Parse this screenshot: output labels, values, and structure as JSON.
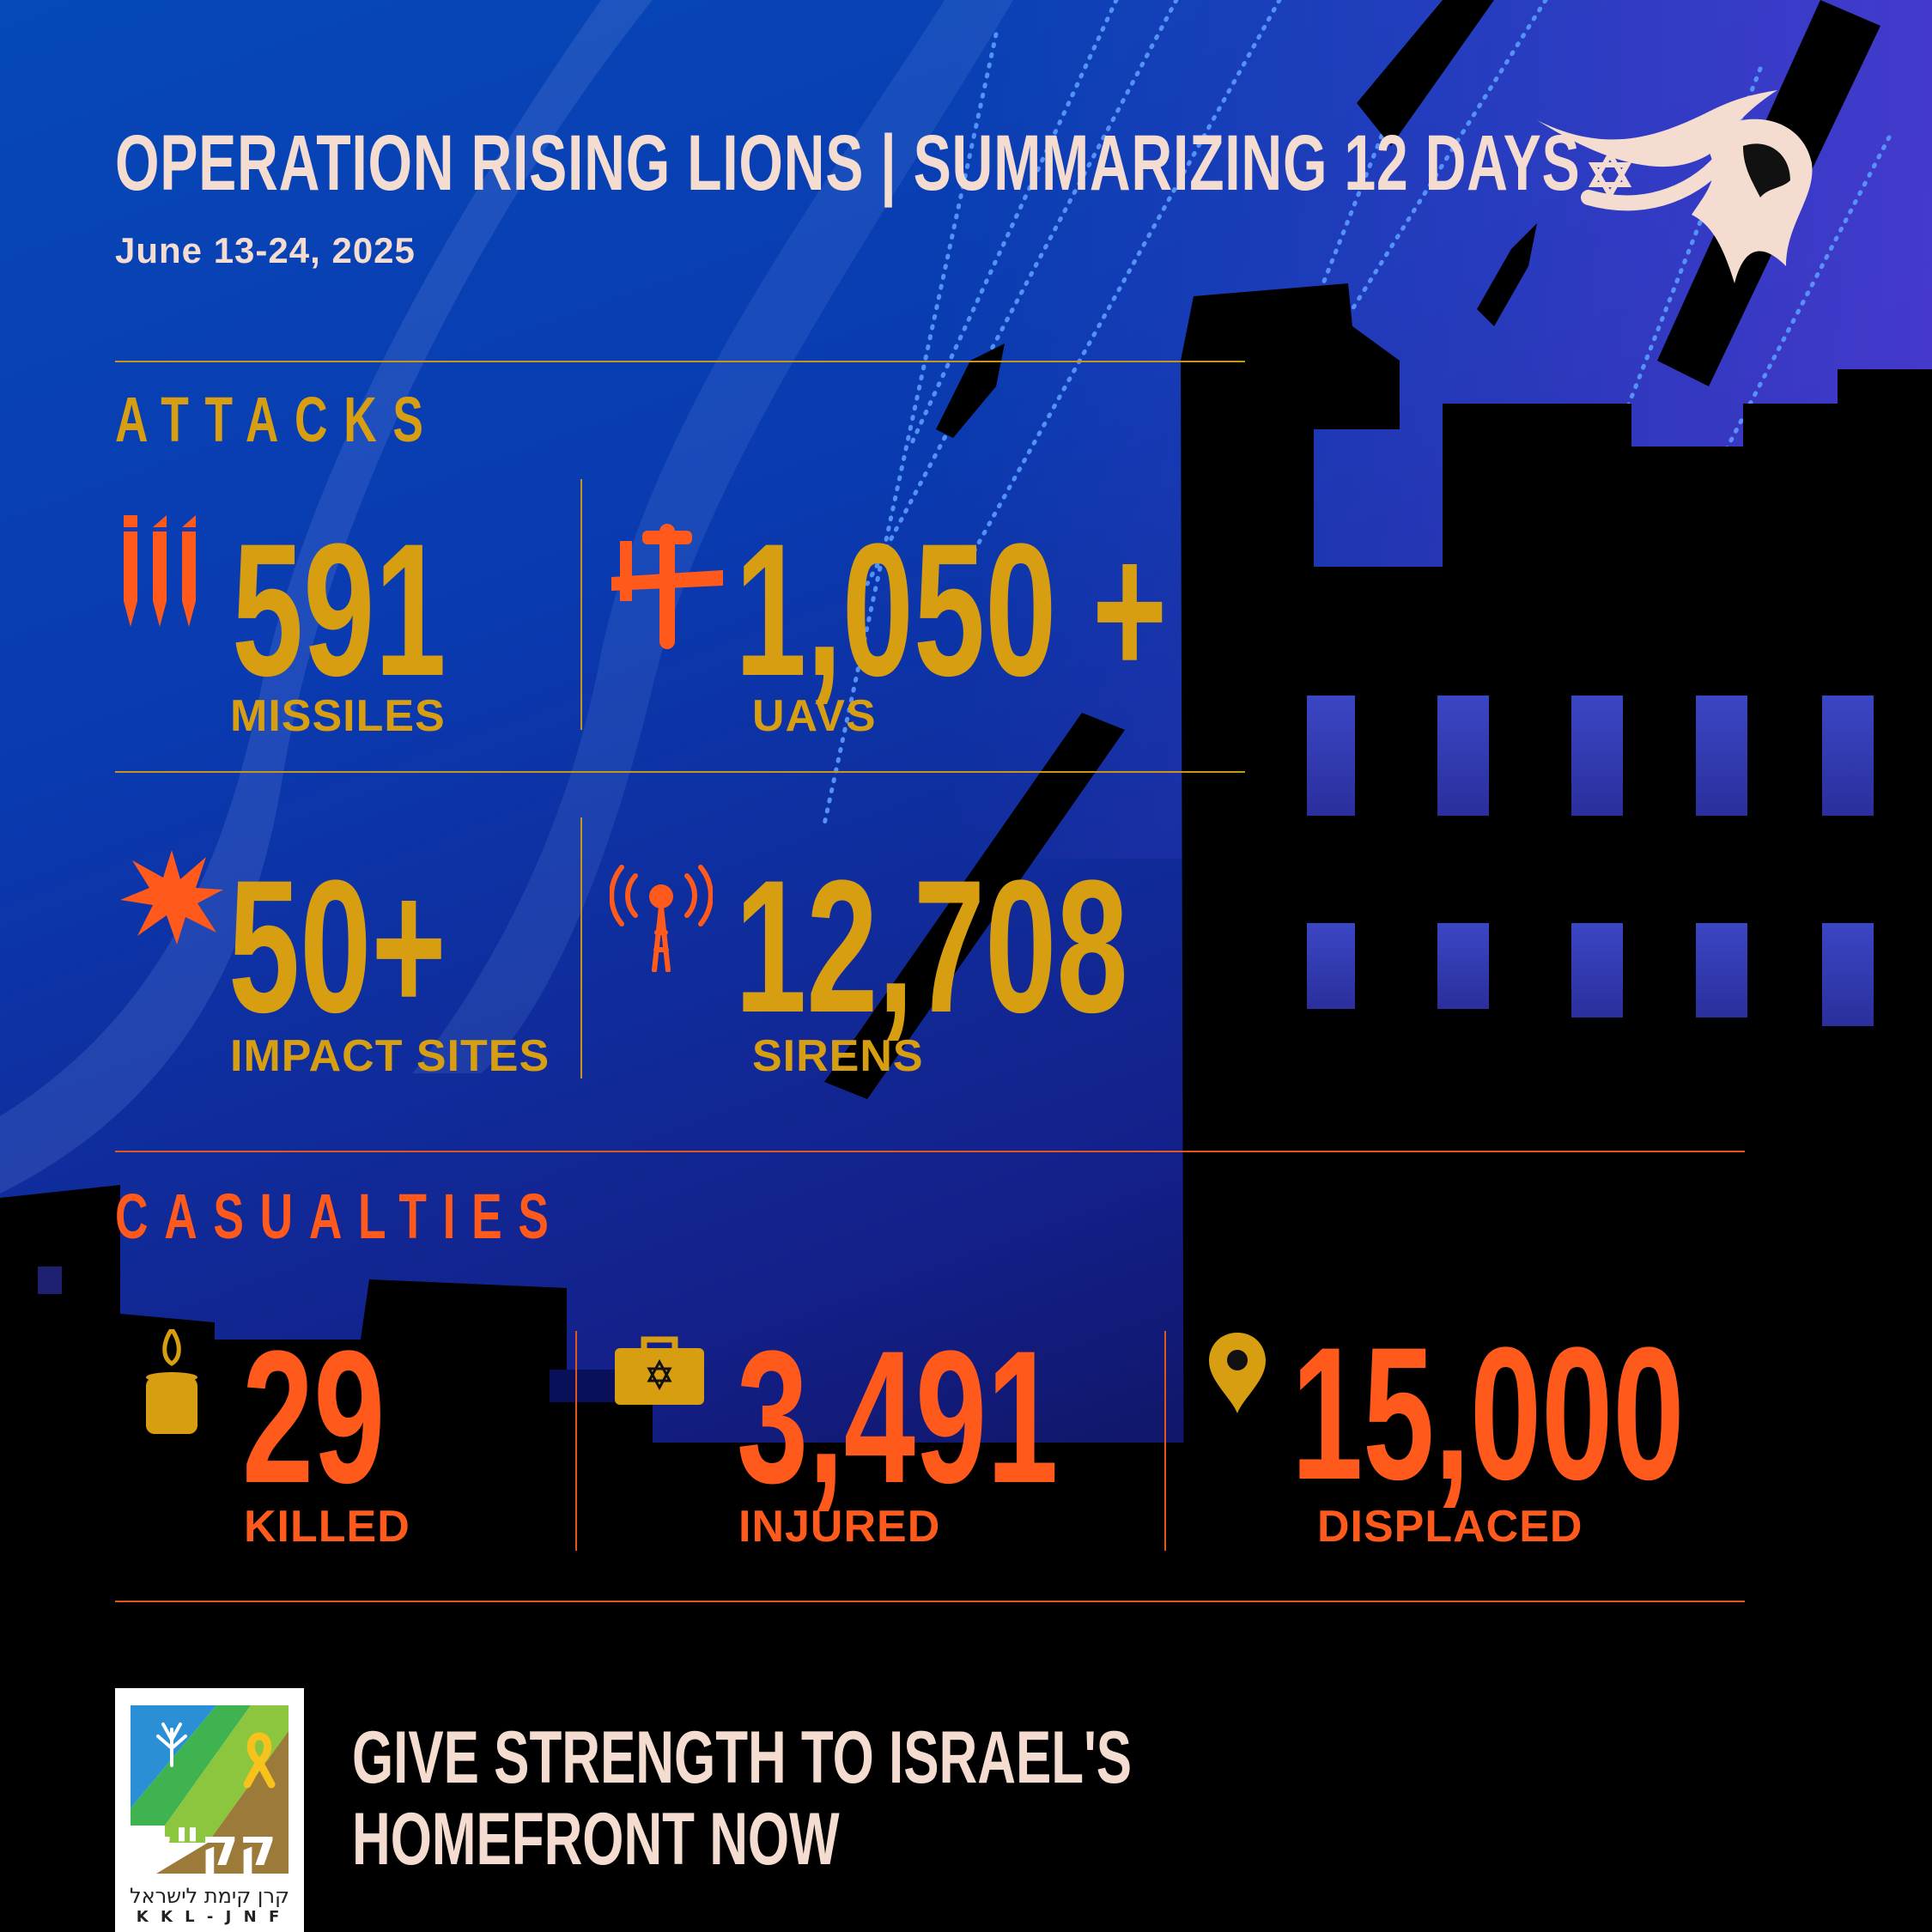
{
  "header": {
    "title": "OPERATION RISING LIONS  |  SUMMARIZING 12 DAYS",
    "date": "June 13-24, 2025"
  },
  "attacks": {
    "section_title": "ATTACKS",
    "stats": [
      {
        "value": "591",
        "label": "MISSILES",
        "icon": "missiles-icon"
      },
      {
        "value": "1,050 +",
        "label": "UAVS",
        "icon": "drone-icon"
      },
      {
        "value": "50+",
        "label": "IMPACT SITES",
        "icon": "explosion-icon"
      },
      {
        "value": "12,708",
        "label": "SIRENS",
        "icon": "siren-tower-icon"
      }
    ]
  },
  "casualties": {
    "section_title": "CASUALTIES",
    "stats": [
      {
        "value": "29",
        "label": "KILLED",
        "icon": "memorial-candle-icon"
      },
      {
        "value": "3,491",
        "label": "INJURED",
        "icon": "medical-kit-icon"
      },
      {
        "value": "15,000",
        "label": "DISPLACED",
        "icon": "location-pin-icon"
      }
    ]
  },
  "cta": {
    "line1": "GIVE STRENGTH TO ISRAEL'S",
    "line2": "HOMEFRONT NOW"
  },
  "logo": {
    "hebrew_letters": "קק\"ל",
    "org_hebrew": "קרן קימת לישראל",
    "org_latin": "K K L - J N F"
  },
  "colors": {
    "gold": "#d79e12",
    "orange": "#ff5a1c",
    "cream": "#f4ddd0",
    "blue": "#0648b8"
  }
}
